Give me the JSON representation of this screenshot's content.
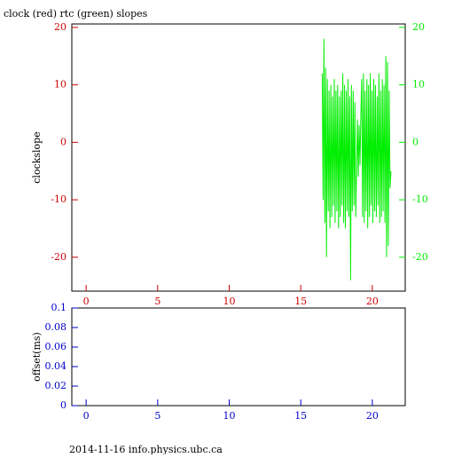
{
  "chart_data": [
    {
      "type": "line",
      "title": "clock (red) rtc (green) slopes",
      "ylabel": "clockslope",
      "axis_color": "#cc0000",
      "y2_color": "#00ee00",
      "xlim": [
        -1,
        22.3
      ],
      "xticks": [
        0,
        5,
        10,
        15,
        20
      ],
      "ylim": [
        -25.9,
        20.6
      ],
      "yticks": [
        -20,
        -10,
        0,
        10,
        20
      ],
      "y2lim": [
        -25.9,
        20.6
      ],
      "y2ticks": [
        -20,
        -10,
        0,
        10,
        20
      ],
      "x": [
        16.5,
        16.56,
        16.62,
        16.68,
        16.74,
        16.8,
        16.86,
        16.92,
        16.98,
        17.04,
        17.1,
        17.16,
        17.22,
        17.28,
        17.34,
        17.4,
        17.46,
        17.52,
        17.58,
        17.64,
        17.7,
        17.76,
        17.82,
        17.88,
        17.94,
        18.0,
        18.06,
        18.12,
        18.18,
        18.24,
        18.3,
        18.36,
        18.42,
        18.48,
        18.54,
        18.6,
        18.66,
        18.72,
        18.78,
        18.84,
        18.9,
        18.96,
        19.02,
        19.08,
        19.14,
        19.2,
        19.26,
        19.32,
        19.38,
        19.44,
        19.5,
        19.56,
        19.62,
        19.68,
        19.74,
        19.8,
        19.86,
        19.92,
        19.98,
        20.04,
        20.1,
        20.16,
        20.22,
        20.28,
        20.34,
        20.4,
        20.46,
        20.52,
        20.58,
        20.64,
        20.7,
        20.76,
        20.82,
        20.88,
        20.94,
        21.0,
        21.06,
        21.12,
        21.18,
        21.24,
        21.3
      ],
      "series": [
        {
          "color": "#00ee00",
          "axis": "y2",
          "values": [
            12,
            -10,
            18,
            -14,
            13,
            -20,
            11,
            -12,
            9,
            -15,
            10,
            -13,
            8,
            -11,
            11,
            -14,
            9,
            -12,
            10,
            -15,
            8,
            -13,
            9,
            -11,
            12,
            -14,
            10,
            -15,
            9,
            -12,
            11,
            -13,
            8,
            -24,
            10,
            -12,
            9,
            -11,
            7,
            -13,
            -5,
            4,
            -6,
            3,
            -4,
            5,
            11,
            -13,
            12,
            -14,
            9,
            -12,
            11,
            -15,
            10,
            -13,
            12,
            -11,
            9,
            -14,
            11,
            -12,
            10,
            -13,
            8,
            -11,
            12,
            -14,
            9,
            -13,
            11,
            -12,
            10,
            -14,
            15,
            -20,
            14,
            -18,
            9,
            -8,
            -5
          ]
        }
      ]
    },
    {
      "type": "line",
      "ylabel": "offset(ms)",
      "axis_color": "#0000cc",
      "xlim": [
        -1,
        22.3
      ],
      "xticks": [
        0,
        5,
        10,
        15,
        20
      ],
      "ylim": [
        0,
        0.1
      ],
      "yticks": [
        0,
        0.02,
        0.04,
        0.06,
        0.08,
        0.1
      ],
      "series": []
    }
  ],
  "footer": "2014-11-16 info.physics.ubc.ca"
}
